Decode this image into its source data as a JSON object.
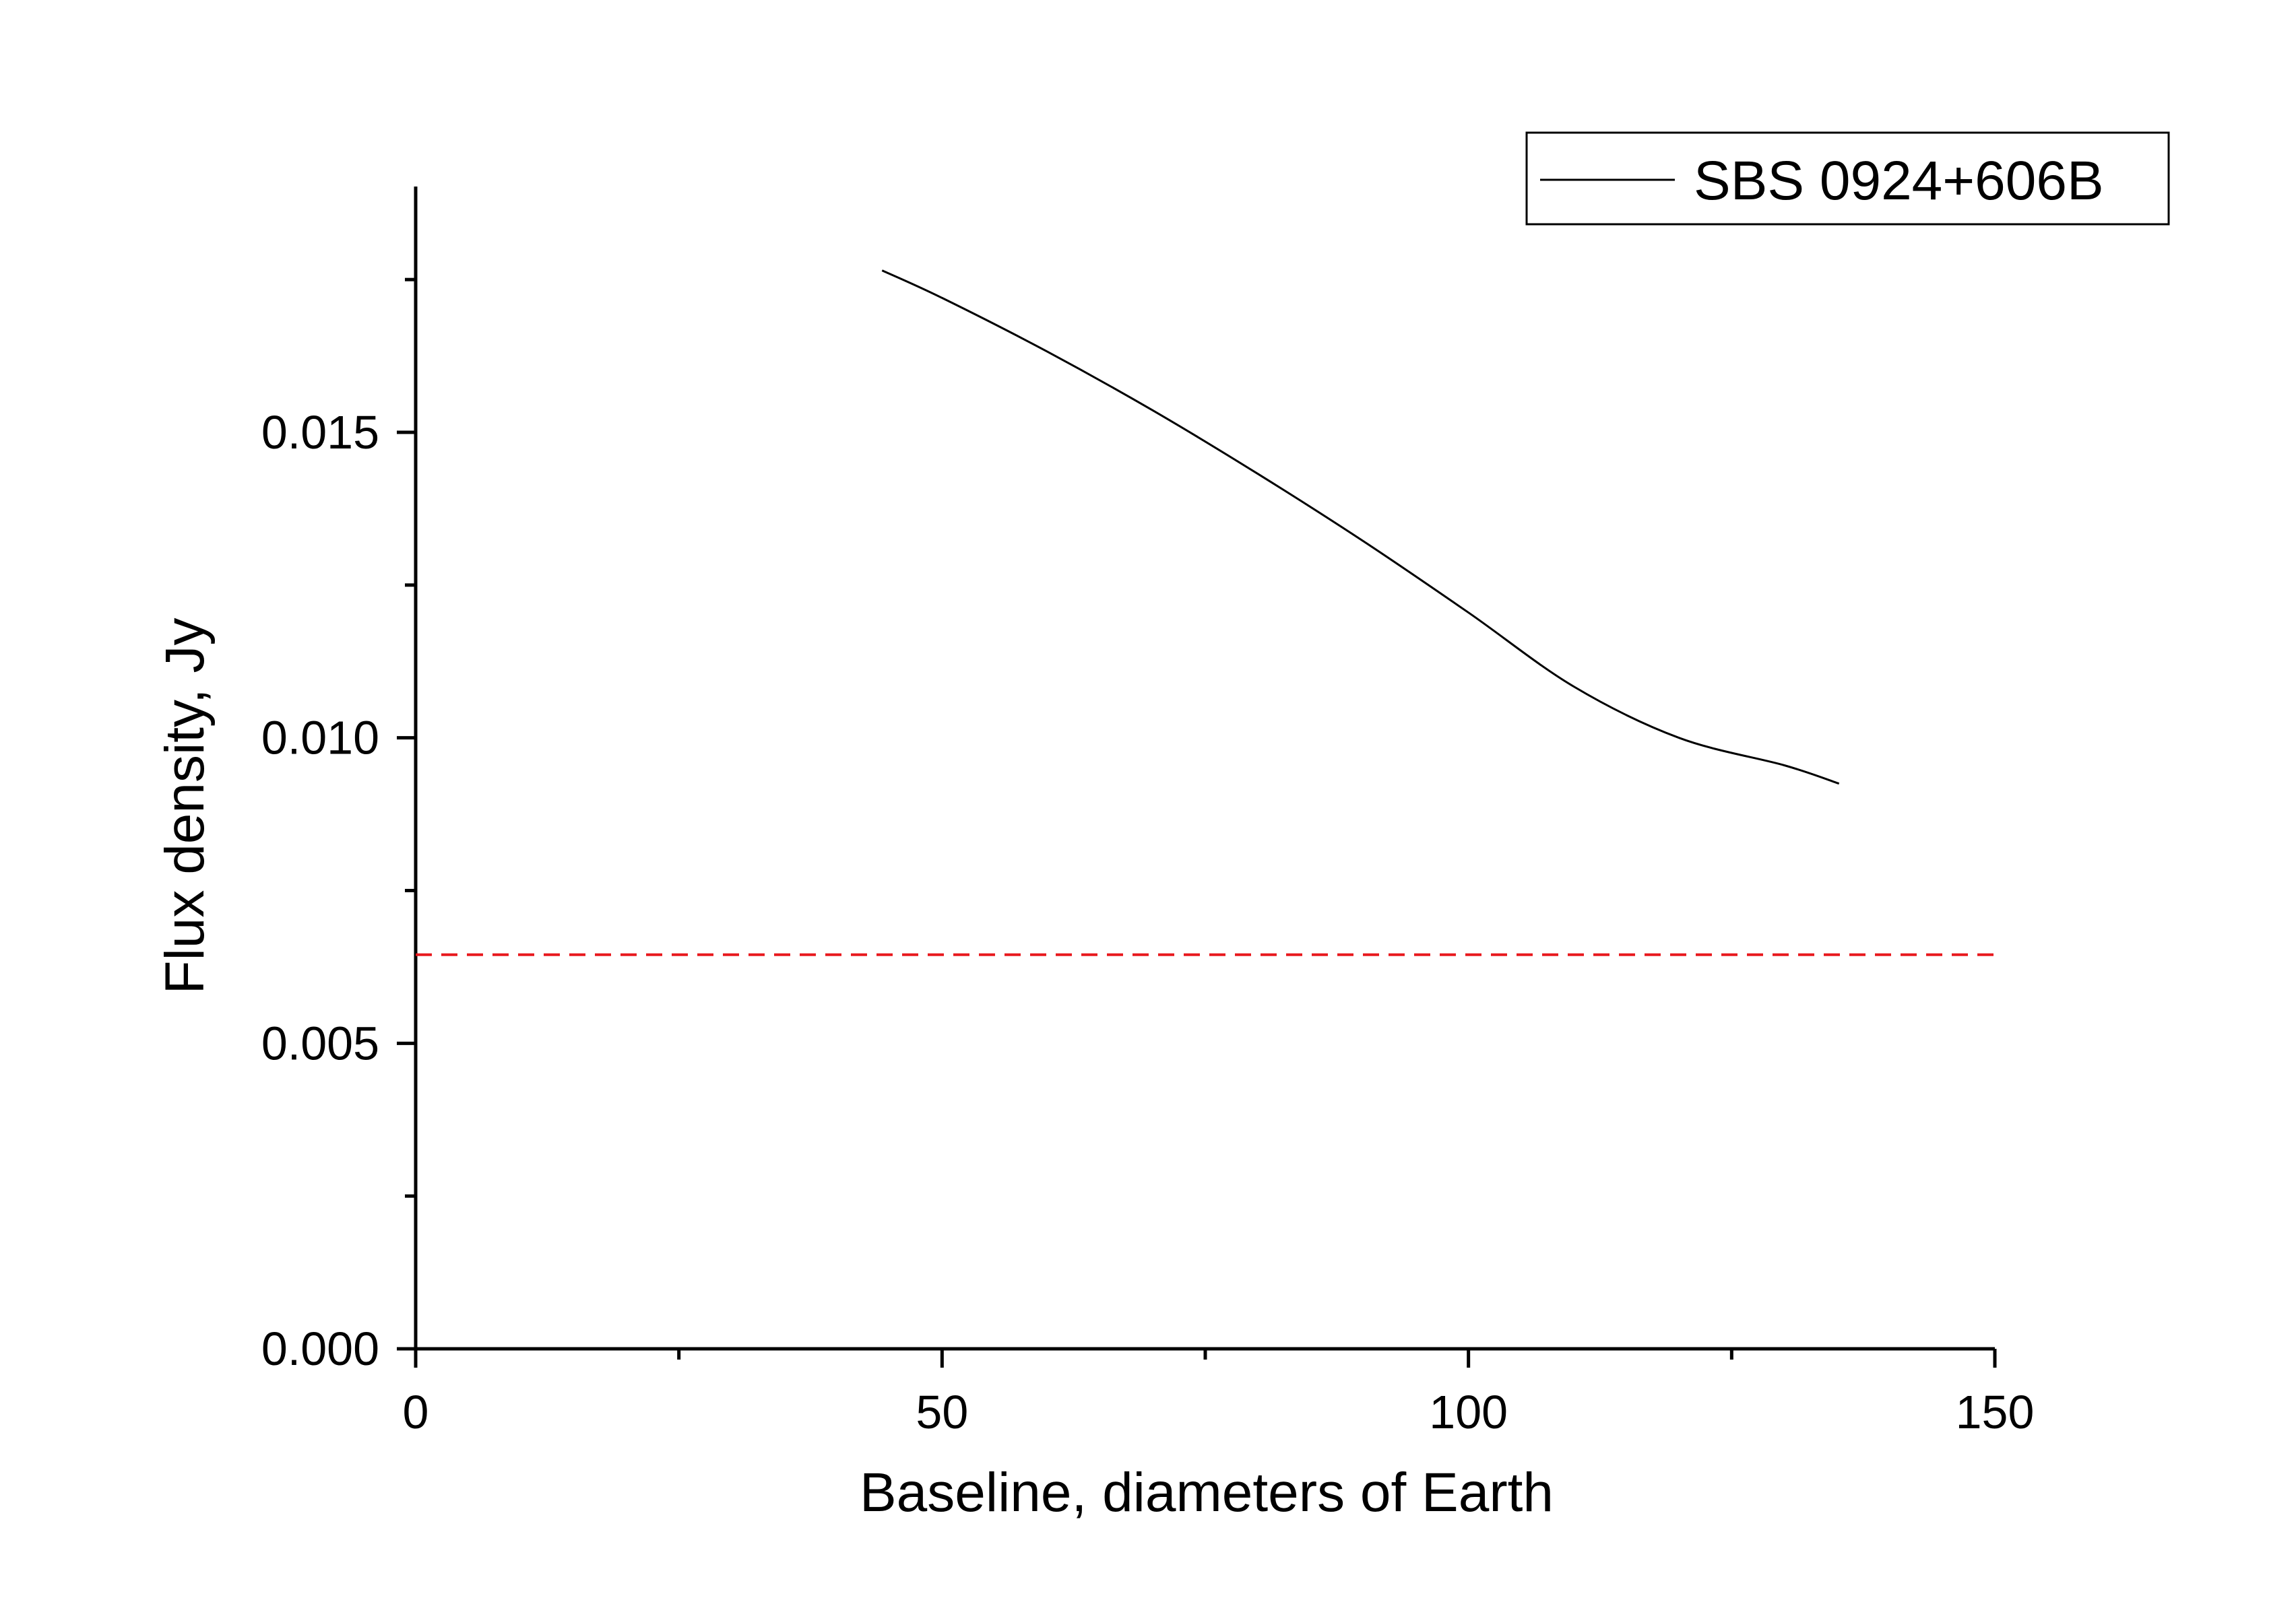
{
  "chart_data": {
    "type": "line",
    "title": "",
    "xlabel": "Baseline, diameters of Earth",
    "ylabel": "Flux density, Jy",
    "xlim": [
      0,
      150
    ],
    "ylim": [
      0,
      0.019
    ],
    "x_major_ticks": [
      0,
      50,
      100,
      150
    ],
    "x_tick_labels": [
      "0",
      "50",
      "100",
      "150"
    ],
    "x_minor_ticks": [
      25,
      75,
      125
    ],
    "y_major_ticks": [
      0,
      0.005,
      0.01,
      0.015
    ],
    "y_tick_labels": [
      "0.000",
      "0.005",
      "0.010",
      "0.015"
    ],
    "y_minor_ticks": [
      0.0025,
      0.0075,
      0.0125,
      0.0175
    ],
    "grid": false,
    "legend_position": "top-right",
    "series": [
      {
        "name": "SBS 0924+606B",
        "color": "#000000",
        "style": "solid",
        "x": [
          44.3,
          50,
          60,
          70,
          80,
          90,
          100,
          110,
          120,
          130,
          135.2
        ],
        "y": [
          0.01765,
          0.0172,
          0.01632,
          0.01536,
          0.01432,
          0.01322,
          0.01205,
          0.01084,
          0.01,
          0.00955,
          0.00925
        ]
      }
    ],
    "reference_lines": [
      {
        "orientation": "horizontal",
        "y": 0.00645,
        "x_range": [
          0,
          150
        ],
        "color": "#e8191e",
        "style": "dashed"
      }
    ]
  }
}
